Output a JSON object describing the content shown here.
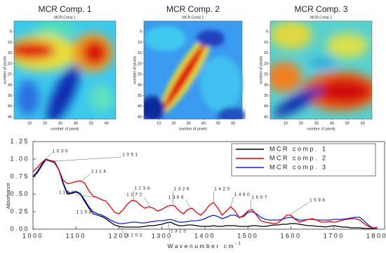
{
  "chart_data": [
    {
      "type": "heatmap",
      "title": "MCR Comp. 1",
      "subtitle": "MCR-Comp 1",
      "xlabel": "number of pixels",
      "ylabel": "number of pixels",
      "xlim": [
        0,
        66
      ],
      "ylim": [
        0,
        46
      ],
      "xticks": [
        10,
        20,
        30,
        40,
        50,
        60
      ],
      "yticks": [
        5,
        10,
        15,
        20,
        25,
        30,
        35,
        40,
        45
      ]
    },
    {
      "type": "heatmap",
      "title": "MCR Comp. 2",
      "subtitle": "MCR-Comp 2",
      "xlabel": "number of pixels",
      "ylabel": "number of pixels",
      "xlim": [
        0,
        66
      ],
      "ylim": [
        0,
        46
      ],
      "xticks": [
        10,
        20,
        30,
        40,
        50,
        60
      ],
      "yticks": [
        5,
        10,
        15,
        20,
        25,
        30,
        35,
        40,
        45
      ]
    },
    {
      "type": "heatmap",
      "title": "MCR Comp. 3",
      "subtitle": "MCR-Comp 3",
      "xlabel": "number of pixels",
      "ylabel": "number of pixels",
      "xlim": [
        0,
        66
      ],
      "ylim": [
        0,
        46
      ],
      "xticks": [
        10,
        20,
        30,
        40,
        50,
        60
      ],
      "yticks": [
        5,
        10,
        15,
        20,
        25,
        30,
        35,
        40,
        45
      ]
    },
    {
      "type": "line",
      "xlabel": "Wavenumber cm",
      "xlabel_sup": "-1",
      "ylabel": "Absorbance",
      "xlim": [
        1000,
        1800
      ],
      "ylim": [
        0,
        1.25
      ],
      "xticks": [
        1000,
        1100,
        1200,
        1300,
        1400,
        1500,
        1600,
        1700,
        1800
      ],
      "yticks": [
        {
          "value": 0,
          "label": "0.00"
        },
        0.25,
        {
          "value": 0.5,
          "label": "0.50"
        },
        0.75,
        {
          "value": 1,
          "label": "1.00"
        },
        1.25
      ],
      "legend": "upper right",
      "x": [
        1000,
        1010,
        1020,
        1030,
        1040,
        1050,
        1060,
        1070,
        1080,
        1090,
        1100,
        1110,
        1120,
        1130,
        1140,
        1150,
        1160,
        1170,
        1180,
        1190,
        1200,
        1210,
        1220,
        1230,
        1240,
        1250,
        1260,
        1270,
        1280,
        1290,
        1300,
        1310,
        1320,
        1330,
        1340,
        1350,
        1360,
        1370,
        1380,
        1390,
        1400,
        1410,
        1420,
        1430,
        1440,
        1450,
        1460,
        1470,
        1480,
        1490,
        1500,
        1510,
        1520,
        1530,
        1540,
        1550,
        1560,
        1570,
        1580,
        1590,
        1600,
        1610,
        1620,
        1630,
        1640,
        1650,
        1660,
        1670,
        1680,
        1690,
        1700,
        1710,
        1720,
        1730,
        1740,
        1750,
        1760,
        1770,
        1780,
        1790,
        1800
      ],
      "series": [
        {
          "name": "MCR comp. 1",
          "color": "#000000",
          "values": [
            0.75,
            0.82,
            0.92,
            1.0,
            0.97,
            0.95,
            0.85,
            0.65,
            0.5,
            0.51,
            0.53,
            0.5,
            0.4,
            0.3,
            0.22,
            0.2,
            0.18,
            0.15,
            0.1,
            0.06,
            0.04,
            0.03,
            0.03,
            0.03,
            0.03,
            0.03,
            0.04,
            0.05,
            0.05,
            0.06,
            0.07,
            0.09,
            0.1,
            0.07,
            0.05,
            0.05,
            0.06,
            0.06,
            0.05,
            0.04,
            0.04,
            0.04,
            0.05,
            0.04,
            0.04,
            0.05,
            0.05,
            0.05,
            0.04,
            0.04,
            0.04,
            0.05,
            0.05,
            0.04,
            0.04,
            0.05,
            0.06,
            0.06,
            0.07,
            0.07,
            0.08,
            0.08,
            0.07,
            0.06,
            0.05,
            0.05,
            0.04,
            0.04,
            0.03,
            0.04,
            0.05,
            0.04,
            0.03,
            0.03,
            0.02,
            0.02,
            0.02,
            0.01,
            0.01,
            0.01,
            0.01
          ]
        },
        {
          "name": "MCR comp. 2",
          "color": "#e00000",
          "values": [
            0.82,
            0.88,
            0.95,
            1.0,
            0.98,
            0.97,
            0.85,
            0.7,
            0.65,
            0.66,
            0.68,
            0.69,
            0.66,
            0.55,
            0.47,
            0.45,
            0.42,
            0.4,
            0.32,
            0.24,
            0.22,
            0.28,
            0.36,
            0.41,
            0.4,
            0.34,
            0.3,
            0.32,
            0.3,
            0.26,
            0.28,
            0.32,
            0.34,
            0.33,
            0.26,
            0.22,
            0.28,
            0.3,
            0.24,
            0.2,
            0.26,
            0.34,
            0.38,
            0.3,
            0.2,
            0.26,
            0.32,
            0.26,
            0.16,
            0.2,
            0.26,
            0.28,
            0.2,
            0.12,
            0.1,
            0.09,
            0.08,
            0.09,
            0.14,
            0.2,
            0.2,
            0.14,
            0.1,
            0.12,
            0.14,
            0.15,
            0.13,
            0.1,
            0.1,
            0.11,
            0.1,
            0.11,
            0.13,
            0.14,
            0.15,
            0.15,
            0.13,
            0.08,
            0.04,
            0.02,
            0.02
          ]
        },
        {
          "name": "MCR comp. 3",
          "color": "#1020d0",
          "values": [
            0.74,
            0.8,
            0.9,
            0.99,
            0.97,
            0.95,
            0.85,
            0.67,
            0.52,
            0.52,
            0.54,
            0.51,
            0.42,
            0.32,
            0.25,
            0.22,
            0.2,
            0.17,
            0.13,
            0.1,
            0.08,
            0.08,
            0.09,
            0.1,
            0.1,
            0.09,
            0.09,
            0.1,
            0.11,
            0.12,
            0.12,
            0.13,
            0.14,
            0.12,
            0.1,
            0.1,
            0.11,
            0.12,
            0.12,
            0.13,
            0.15,
            0.18,
            0.2,
            0.18,
            0.15,
            0.17,
            0.2,
            0.2,
            0.17,
            0.18,
            0.24,
            0.25,
            0.22,
            0.17,
            0.14,
            0.13,
            0.13,
            0.13,
            0.14,
            0.16,
            0.17,
            0.15,
            0.13,
            0.13,
            0.14,
            0.14,
            0.13,
            0.13,
            0.13,
            0.13,
            0.14,
            0.14,
            0.14,
            0.15,
            0.16,
            0.17,
            0.17,
            0.12,
            0.06,
            0.02,
            0.01
          ]
        }
      ],
      "annotations": [
        {
          "x": 1030,
          "y": 1.0
        },
        {
          "x": 1051,
          "y": 0.97
        },
        {
          "x": 1114,
          "y": 0.69
        },
        {
          "x": 1150,
          "y": 0.45
        },
        {
          "x": 1158,
          "y": 0.19
        },
        {
          "x": 1234,
          "y": 0.41
        },
        {
          "x": 1203,
          "y": 0.04
        },
        {
          "x": 1272,
          "y": 0.32
        },
        {
          "x": 1326,
          "y": 0.34
        },
        {
          "x": 1315,
          "y": 0.1
        },
        {
          "x": 1366,
          "y": 0.3
        },
        {
          "x": 1420,
          "y": 0.38
        },
        {
          "x": 1460,
          "y": 0.32
        },
        {
          "x": 1507,
          "y": 0.28
        },
        {
          "x": 1596,
          "y": 0.2
        }
      ]
    }
  ]
}
